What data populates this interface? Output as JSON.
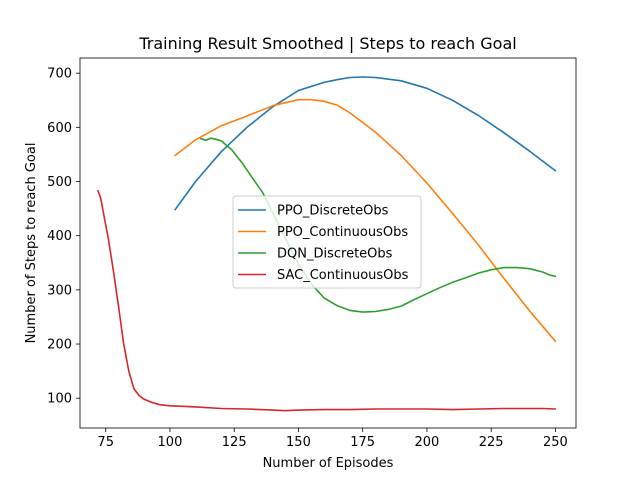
{
  "chart_data": {
    "type": "line",
    "title": "Training Result Smoothed | Steps to reach Goal",
    "xlabel": "Number of Episodes",
    "ylabel": "Number of Steps to reach Goal",
    "xlim": [
      65,
      258
    ],
    "ylim": [
      45,
      728
    ],
    "xticks": [
      75,
      100,
      125,
      150,
      175,
      200,
      225,
      250
    ],
    "yticks": [
      100,
      200,
      300,
      400,
      500,
      600,
      700
    ],
    "grid": false,
    "legend_position": "center",
    "series": [
      {
        "name": "PPO_DiscreteObs",
        "color": "#1f77b4",
        "x": [
          102,
          110,
          120,
          130,
          140,
          150,
          160,
          165,
          170,
          175,
          180,
          190,
          200,
          210,
          220,
          230,
          240,
          250
        ],
        "y": [
          448,
          500,
          555,
          600,
          638,
          668,
          683,
          688,
          692,
          693,
          692,
          686,
          672,
          650,
          622,
          590,
          556,
          520
        ]
      },
      {
        "name": "PPO_ContinuousObs",
        "color": "#ff7f0e",
        "x": [
          102,
          110,
          120,
          130,
          140,
          150,
          155,
          160,
          165,
          170,
          180,
          190,
          200,
          210,
          220,
          230,
          240,
          250
        ],
        "y": [
          548,
          577,
          603,
          621,
          640,
          651,
          651,
          648,
          641,
          627,
          591,
          548,
          497,
          441,
          383,
          321,
          261,
          205
        ]
      },
      {
        "name": "DQN_DiscreteObs",
        "color": "#2ca02c",
        "x": [
          112,
          114,
          116,
          118,
          120,
          124,
          128,
          132,
          136,
          140,
          145,
          150,
          155,
          160,
          165,
          170,
          175,
          180,
          185,
          190,
          195,
          200,
          205,
          210,
          215,
          220,
          225,
          230,
          235,
          240,
          245,
          248,
          250
        ],
        "y": [
          579,
          576,
          580,
          578,
          575,
          559,
          535,
          507,
          480,
          442,
          394,
          348,
          311,
          285,
          271,
          262,
          259,
          260,
          264,
          270,
          282,
          293,
          304,
          314,
          322,
          331,
          337,
          341,
          341,
          339,
          333,
          327,
          325
        ]
      },
      {
        "name": "SAC_ContinuousObs",
        "color": "#d62728",
        "x": [
          72,
          73,
          75,
          76,
          78,
          80,
          82,
          84,
          86,
          88,
          90,
          93,
          96,
          100,
          105,
          110,
          120,
          130,
          140,
          145,
          150,
          160,
          170,
          180,
          190,
          200,
          210,
          220,
          230,
          240,
          245,
          250
        ],
        "y": [
          483,
          470,
          420,
          395,
          335,
          270,
          200,
          150,
          117,
          105,
          98,
          92,
          88,
          86,
          85,
          84,
          81,
          80,
          78,
          77,
          78,
          79,
          79,
          80,
          80,
          80,
          79,
          80,
          81,
          81,
          81,
          80
        ]
      }
    ]
  }
}
